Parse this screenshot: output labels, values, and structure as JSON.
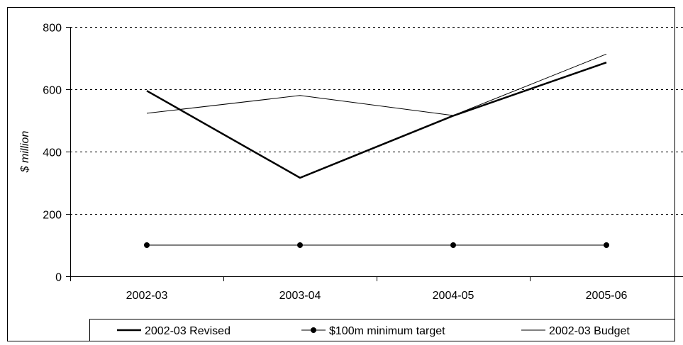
{
  "chart_data": {
    "type": "line",
    "title": "",
    "xlabel": "",
    "ylabel": "$ million",
    "categories": [
      "2002-03",
      "2003-04",
      "2004-05",
      "2005-06"
    ],
    "ylim": [
      0,
      800
    ],
    "yticks": [
      0,
      200,
      400,
      600,
      800
    ],
    "grid": "horizontal dotted",
    "legend_position": "bottom",
    "series": [
      {
        "name": "2002-03 Revised",
        "values": [
          595,
          316,
          515,
          686
        ],
        "style": "thick-line",
        "color": "#000000"
      },
      {
        "name": "$100m minimum target",
        "values": [
          100,
          100,
          100,
          100
        ],
        "style": "line-with-dot-markers",
        "color": "#000000"
      },
      {
        "name": "2002-03 Budget",
        "values": [
          523,
          580,
          516,
          713
        ],
        "style": "thin-line",
        "color": "#000000"
      }
    ]
  }
}
